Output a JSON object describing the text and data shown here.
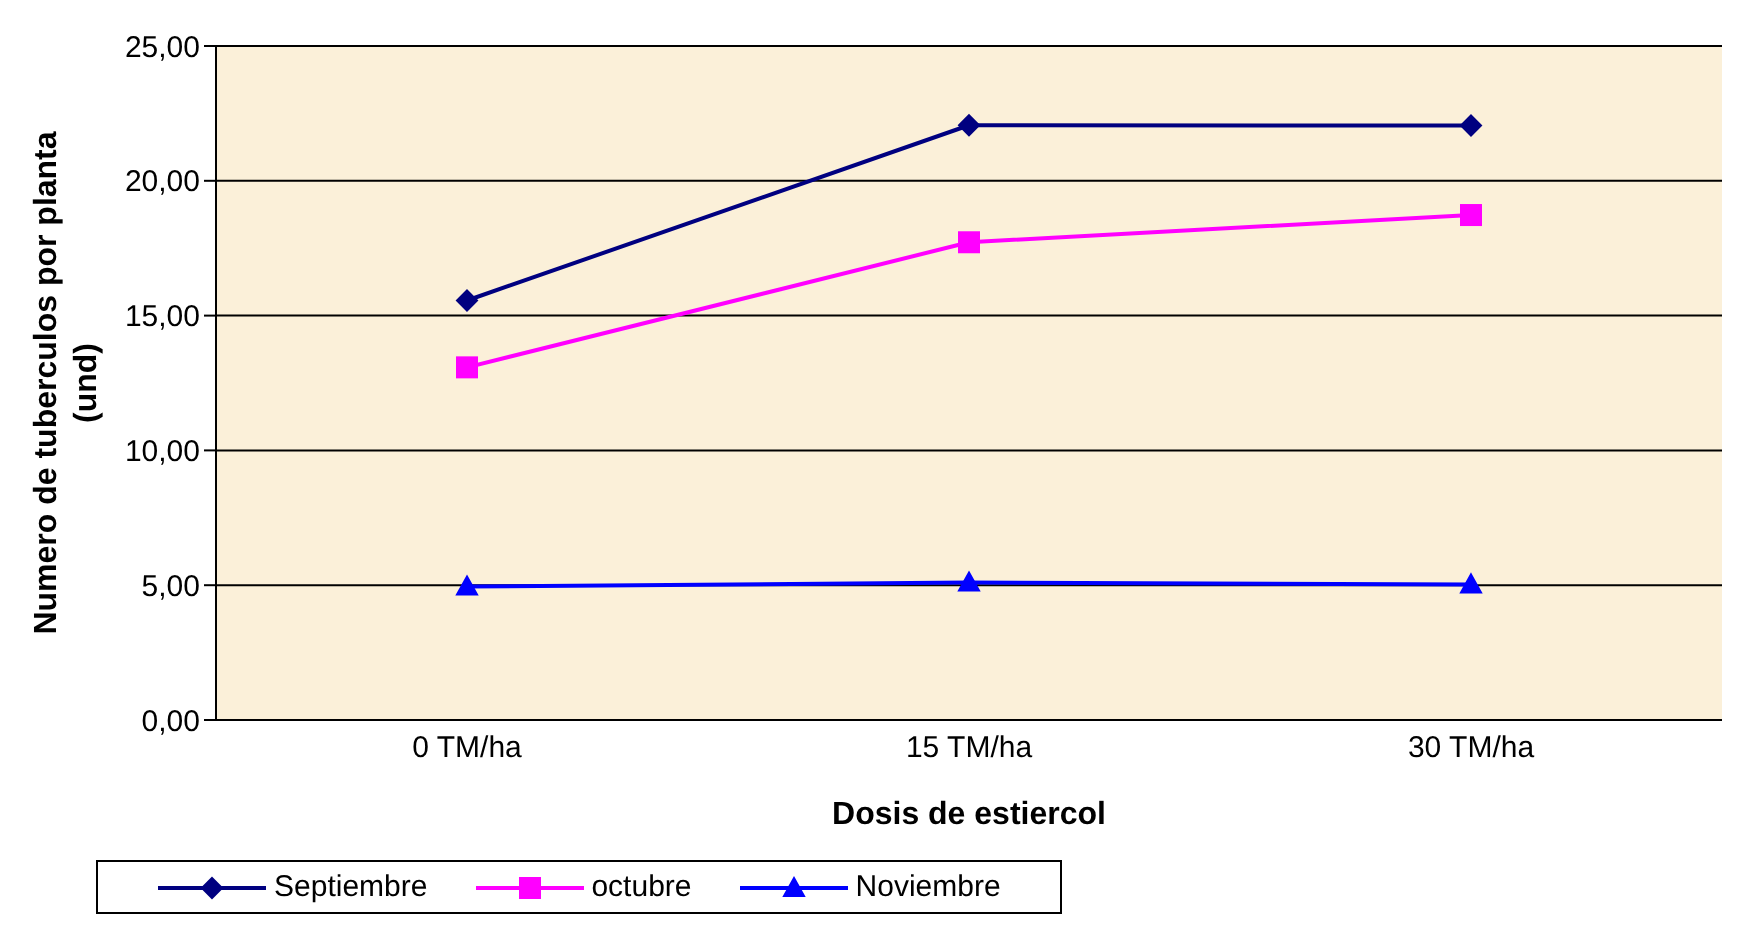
{
  "chart_data": {
    "type": "line",
    "xlabel": "Dosis de estiercol",
    "ylabel": "Numero de tuberculos por planta (und)",
    "categories": [
      "0 TM/ha",
      "15 TM/ha",
      "30 TM/ha"
    ],
    "series": [
      {
        "name": "Septiembre",
        "color": "#000080",
        "marker": "diamond",
        "values": [
          15.56,
          22.06,
          22.05
        ]
      },
      {
        "name": "octubre",
        "color": "#ff00ff",
        "marker": "square",
        "values": [
          13.08,
          17.72,
          18.73
        ]
      },
      {
        "name": "Noviembre",
        "color": "#0000ff",
        "marker": "triangle",
        "values": [
          4.95,
          5.1,
          5.03
        ]
      }
    ],
    "ylim": [
      0,
      25
    ],
    "yticks": [
      {
        "value": 0,
        "label": "0,00"
      },
      {
        "value": 5,
        "label": "5,00"
      },
      {
        "value": 10,
        "label": "10,00"
      },
      {
        "value": 15,
        "label": "15,00"
      },
      {
        "value": 20,
        "label": "20,00"
      },
      {
        "value": 25,
        "label": "25,00"
      }
    ],
    "grid": "y",
    "legend": "bottom",
    "line_style": "solid"
  }
}
